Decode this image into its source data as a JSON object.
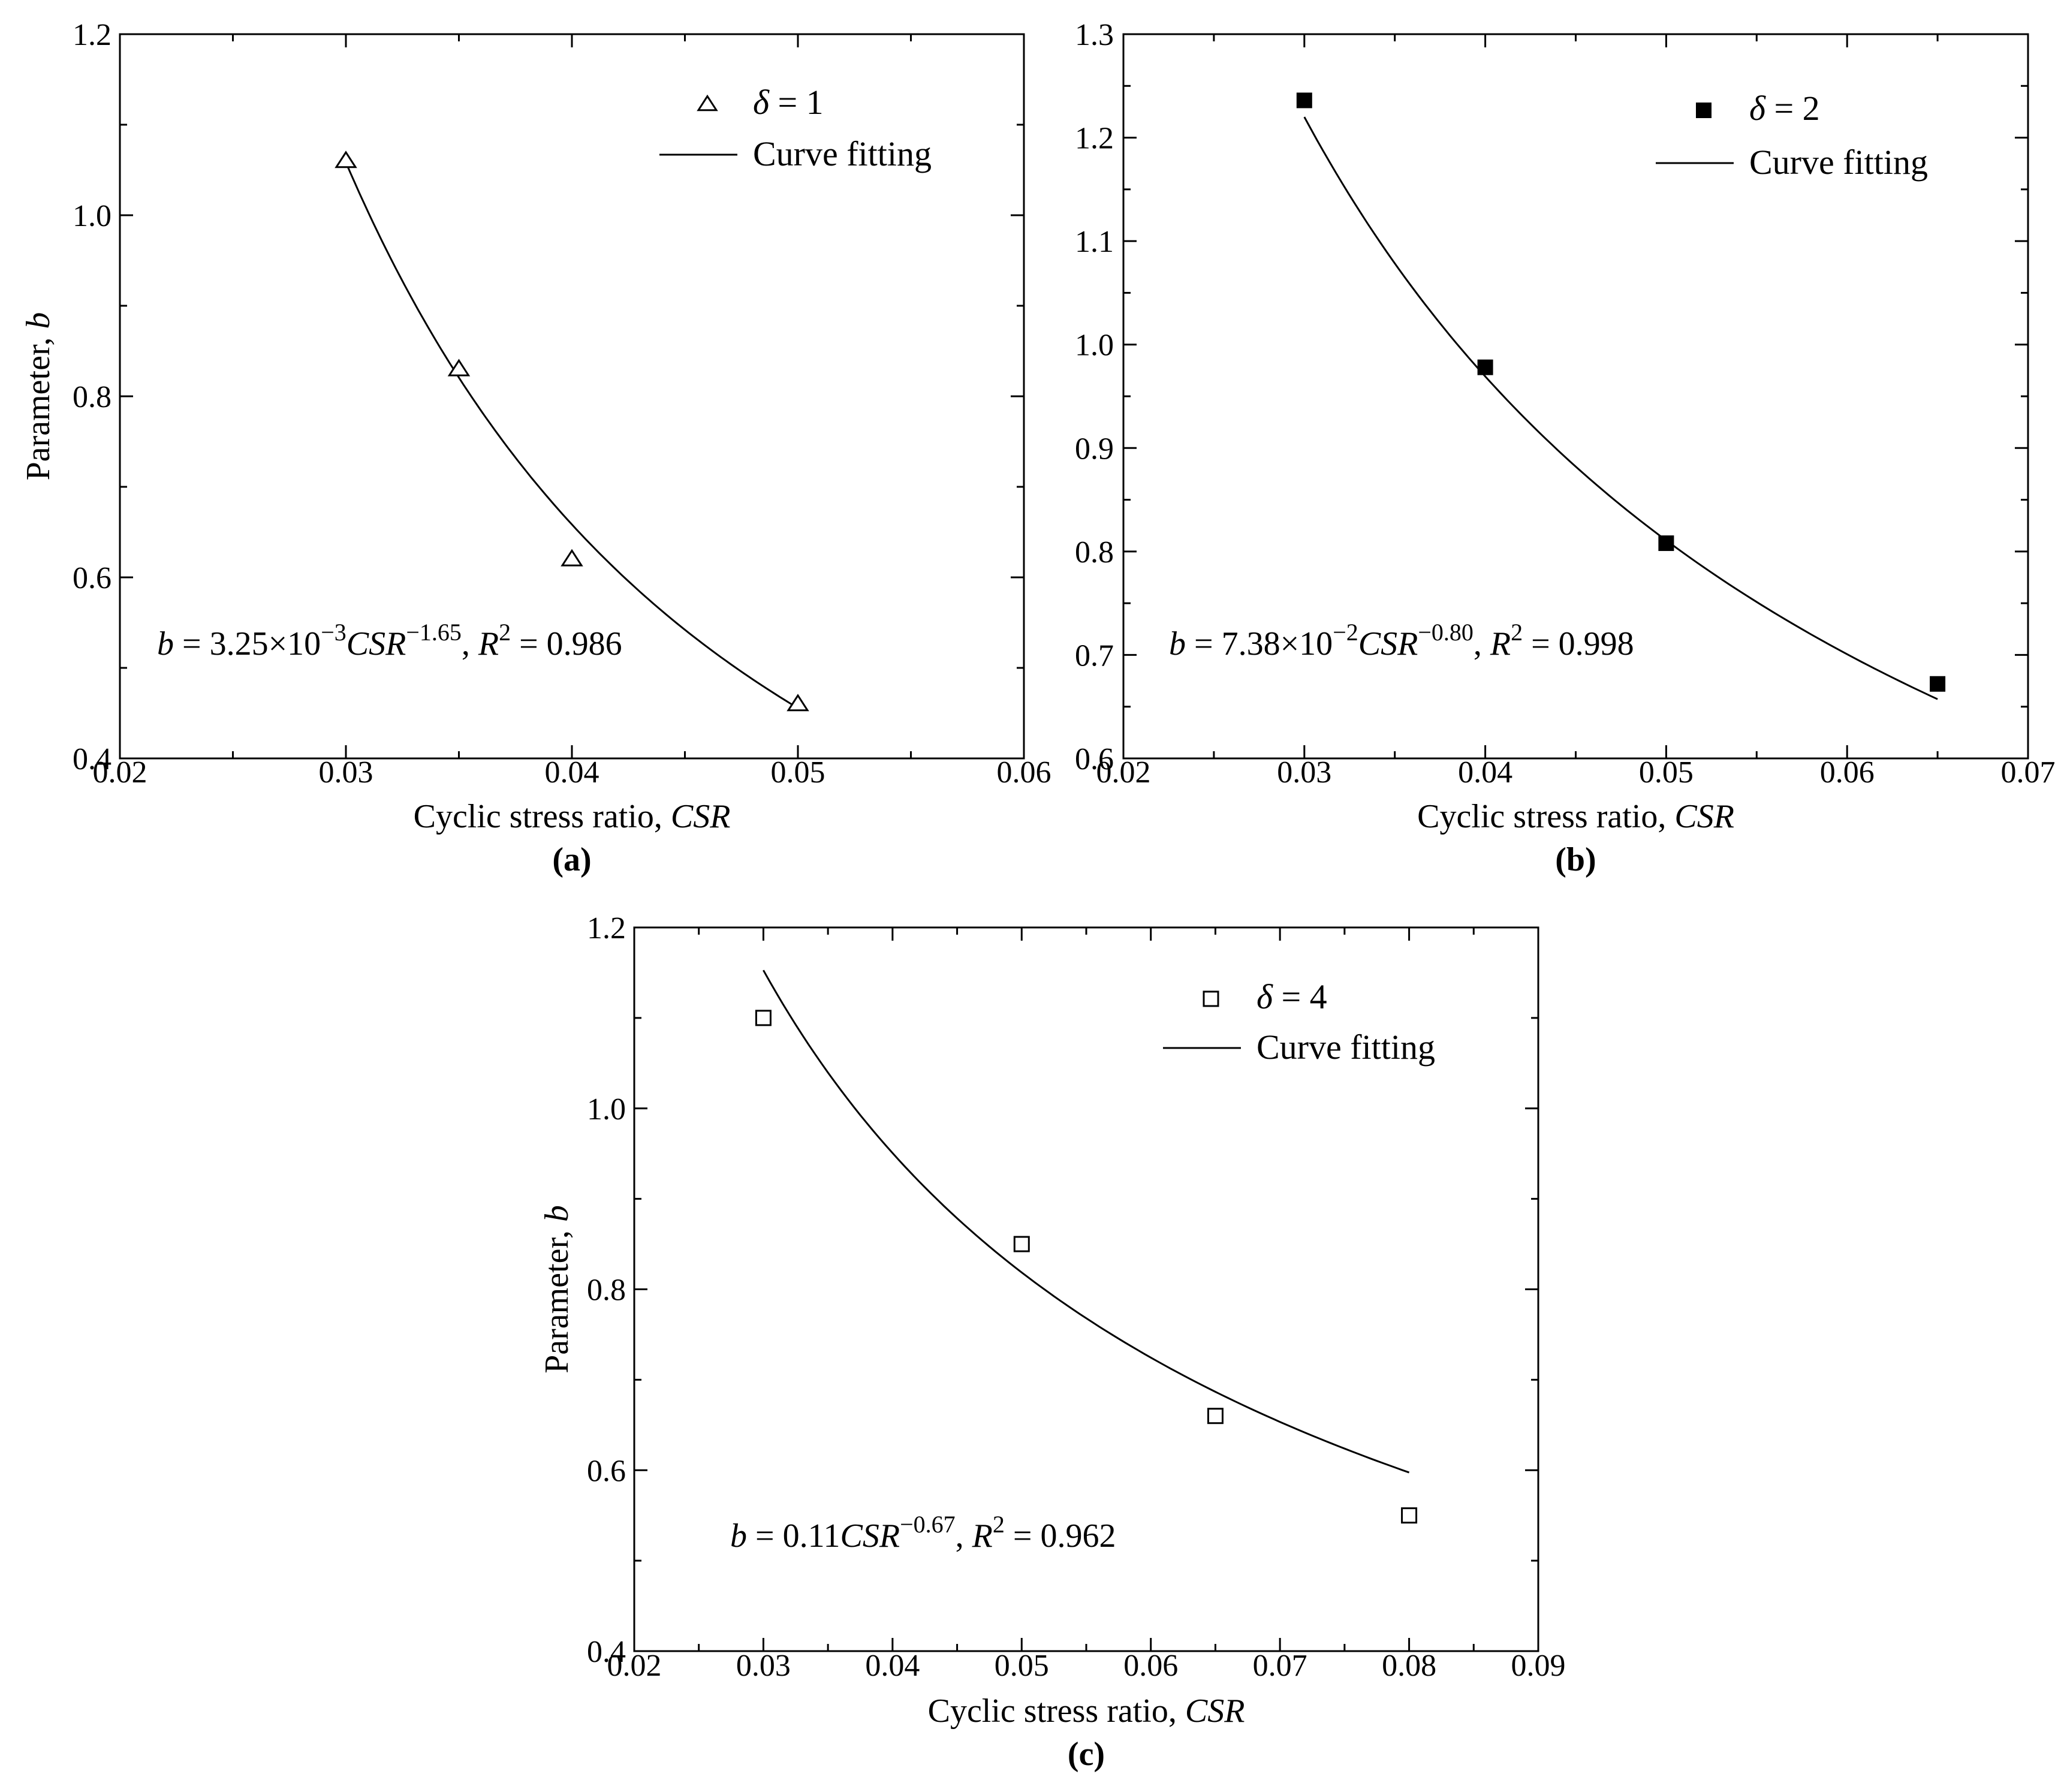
{
  "chart_data": [
    {
      "panel_label": "(a)",
      "type": "scatter",
      "xlabel": "Cyclic stress ratio, ",
      "xlabel_italic": "CSR",
      "ylabel": "Parameter, ",
      "ylabel_italic": "b",
      "xlim": [
        0.02,
        0.06
      ],
      "ylim": [
        0.4,
        1.2
      ],
      "xticks": [
        0.02,
        0.03,
        0.04,
        0.05,
        0.06
      ],
      "xtick_labels": [
        "0.02",
        "0.03",
        "0.04",
        "0.05",
        "0.06"
      ],
      "yticks": [
        0.4,
        0.6,
        0.8,
        1.0,
        1.2
      ],
      "ytick_labels": [
        "0.4",
        "0.6",
        "0.8",
        "1.0",
        "1.2"
      ],
      "marker": "triangle-open",
      "legend_position": "top-right",
      "series": [
        {
          "name": "δ = 1",
          "x": [
            0.03,
            0.035,
            0.04,
            0.05
          ],
          "y": [
            1.06,
            0.83,
            0.62,
            0.46
          ]
        },
        {
          "name": "Curve fitting",
          "fit": {
            "a": 0.00325,
            "n": -1.65
          },
          "x_range": [
            0.03,
            0.05
          ]
        }
      ],
      "equation": {
        "lead": "b",
        "eq": " = ",
        "coef": "3.25×10",
        "coef_exp": "−3",
        "csr": "CSR",
        "csr_exp": "−1.65",
        "comma": ",   ",
        "r": "R",
        "r_exp": "2",
        "r_val": " = 0.986"
      }
    },
    {
      "panel_label": "(b)",
      "type": "scatter",
      "xlabel": "Cyclic stress ratio, ",
      "xlabel_italic": "CSR",
      "ylabel": "",
      "ylabel_italic": "",
      "xlim": [
        0.02,
        0.07
      ],
      "ylim": [
        0.6,
        1.3
      ],
      "xticks": [
        0.02,
        0.03,
        0.04,
        0.05,
        0.06,
        0.07
      ],
      "xtick_labels": [
        "0.02",
        "0.03",
        "0.04",
        "0.05",
        "0.06",
        "0.07"
      ],
      "yticks": [
        0.6,
        0.7,
        0.8,
        0.9,
        1.0,
        1.1,
        1.2,
        1.3
      ],
      "ytick_labels": [
        "0.6",
        "0.7",
        "0.8",
        "0.9",
        "1.0",
        "1.1",
        "1.2",
        "1.3"
      ],
      "marker": "square-filled",
      "legend_position": "top-right",
      "series": [
        {
          "name": "δ = 2",
          "x": [
            0.03,
            0.04,
            0.05,
            0.065
          ],
          "y": [
            1.236,
            0.978,
            0.808,
            0.672
          ]
        },
        {
          "name": "Curve fitting",
          "fit": {
            "a": 0.0738,
            "n": -0.8
          },
          "x_range": [
            0.03,
            0.065
          ]
        }
      ],
      "equation": {
        "lead": "b",
        "eq": " = ",
        "coef": "7.38×10",
        "coef_exp": "−2",
        "csr": "CSR",
        "csr_exp": "−0.80",
        "comma": ",   ",
        "r": "R",
        "r_exp": "2",
        "r_val": " = 0.998"
      }
    },
    {
      "panel_label": "(c)",
      "type": "scatter",
      "xlabel": "Cyclic stress ratio, ",
      "xlabel_italic": "CSR",
      "ylabel": "Parameter, ",
      "ylabel_italic": "b",
      "xlim": [
        0.02,
        0.09
      ],
      "ylim": [
        0.4,
        1.2
      ],
      "xticks": [
        0.02,
        0.03,
        0.04,
        0.05,
        0.06,
        0.07,
        0.08,
        0.09
      ],
      "xtick_labels": [
        "0.02",
        "0.03",
        "0.04",
        "0.05",
        "0.06",
        "0.07",
        "0.08",
        "0.09"
      ],
      "yticks": [
        0.4,
        0.6,
        0.8,
        1.0,
        1.2
      ],
      "ytick_labels": [
        "0.4",
        "0.6",
        "0.8",
        "1.0",
        "1.2"
      ],
      "marker": "square-open",
      "legend_position": "top-right",
      "series": [
        {
          "name": "δ = 4",
          "x": [
            0.03,
            0.05,
            0.065,
            0.08
          ],
          "y": [
            1.1,
            0.85,
            0.66,
            0.55
          ]
        },
        {
          "name": "Curve fitting",
          "fit": {
            "a": 0.11,
            "n": -0.67
          },
          "x_range": [
            0.03,
            0.08
          ]
        }
      ],
      "equation": {
        "lead": "b",
        "eq": " = ",
        "coef": "0.11",
        "coef_exp": "",
        "csr": "CSR",
        "csr_exp": "−0.67",
        "comma": ",   ",
        "r": "R",
        "r_exp": "2",
        "r_val": " = 0.962"
      }
    }
  ]
}
